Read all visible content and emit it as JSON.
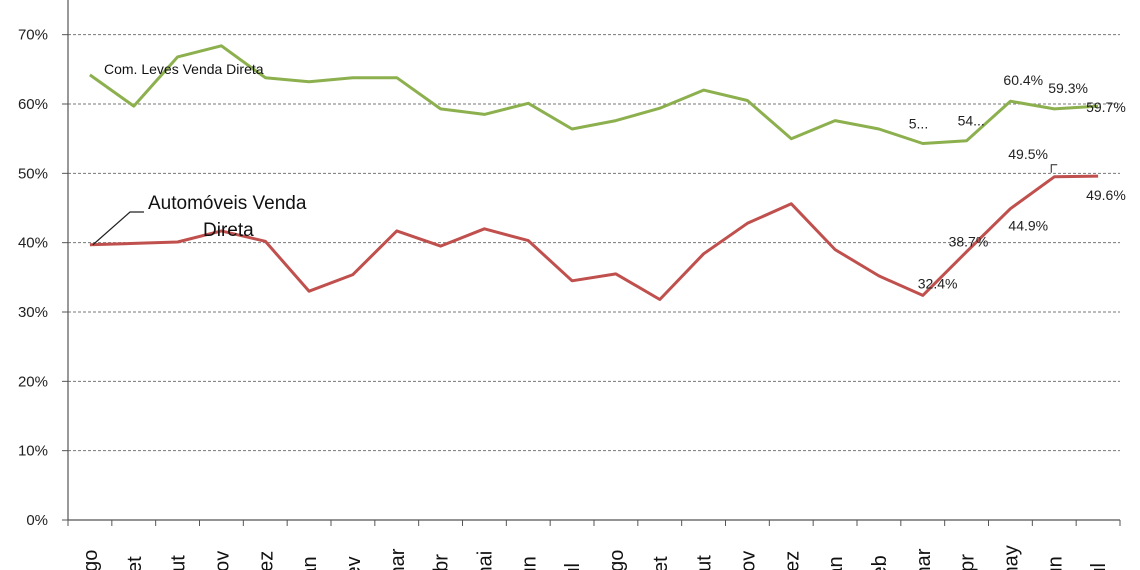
{
  "chart_data": {
    "type": "line",
    "categories": [
      "ago",
      "set",
      "out",
      "nov",
      "dez",
      "jan",
      "fev",
      "mar",
      "abr",
      "mai",
      "jun",
      "jul",
      "ago",
      "set",
      "out",
      "nov",
      "dez",
      "jan",
      "feb",
      "mar",
      "apr",
      "may",
      "jun",
      "jul"
    ],
    "ylim": [
      0,
      0.75
    ],
    "yticks": [
      0,
      0.1,
      0.2,
      0.3,
      0.4,
      0.5,
      0.6,
      0.7
    ],
    "ytick_labels": [
      "0%",
      "10%",
      "20%",
      "30%",
      "40%",
      "50%",
      "60%",
      "70%"
    ],
    "grid": true,
    "series": [
      {
        "name": "Com. Leves Venda Direta",
        "color": "#8db04f",
        "values": [
          0.642,
          0.597,
          0.668,
          0.684,
          0.638,
          0.632,
          0.638,
          0.638,
          0.593,
          0.585,
          0.601,
          0.564,
          0.576,
          0.594,
          0.62,
          0.605,
          0.55,
          0.576,
          0.564,
          0.543,
          0.547,
          0.604,
          0.593,
          0.597
        ],
        "data_labels": [
          {
            "index": 19,
            "text": "5..."
          },
          {
            "index": 20,
            "text": "54..."
          },
          {
            "index": 21,
            "text": "60.4%"
          },
          {
            "index": 22,
            "text": "59.3%"
          },
          {
            "index": 23,
            "text": "59.7%"
          }
        ]
      },
      {
        "name": "Automóveis Venda Direta",
        "color": "#c0504d",
        "values": [
          0.397,
          0.399,
          0.401,
          0.417,
          0.402,
          0.33,
          0.354,
          0.417,
          0.395,
          0.42,
          0.403,
          0.345,
          0.355,
          0.318,
          0.384,
          0.428,
          0.456,
          0.39,
          0.352,
          0.324,
          0.387,
          0.449,
          0.495,
          0.496
        ],
        "data_labels": [
          {
            "index": 19,
            "text": "32.4%"
          },
          {
            "index": 20,
            "text": "38.7%"
          },
          {
            "index": 21,
            "text": "44.9%"
          },
          {
            "index": 22,
            "text": "49.5%"
          },
          {
            "index": 23,
            "text": "49.6%"
          }
        ]
      }
    ]
  }
}
